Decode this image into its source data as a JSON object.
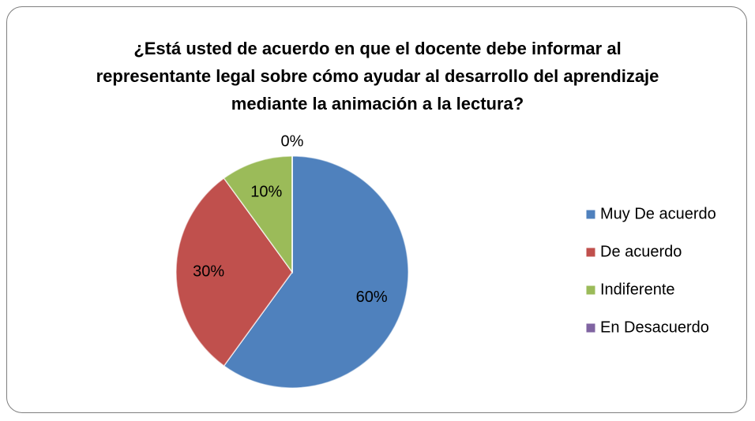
{
  "chart_data": {
    "type": "pie",
    "title": "¿Está usted de acuerdo en que el docente debe informar al representante legal sobre cómo ayudar al desarrollo del aprendizaje mediante la animación a la lectura?",
    "categories": [
      "Muy De acuerdo",
      "De acuerdo",
      "Indiferente",
      "En Desacuerdo"
    ],
    "values": [
      60,
      30,
      10,
      0
    ],
    "value_labels": [
      "60%",
      "30%",
      "10%",
      "0%"
    ],
    "colors": [
      "#4f81bd",
      "#c0504d",
      "#9bbb59",
      "#8064a2"
    ],
    "legend": "right"
  }
}
